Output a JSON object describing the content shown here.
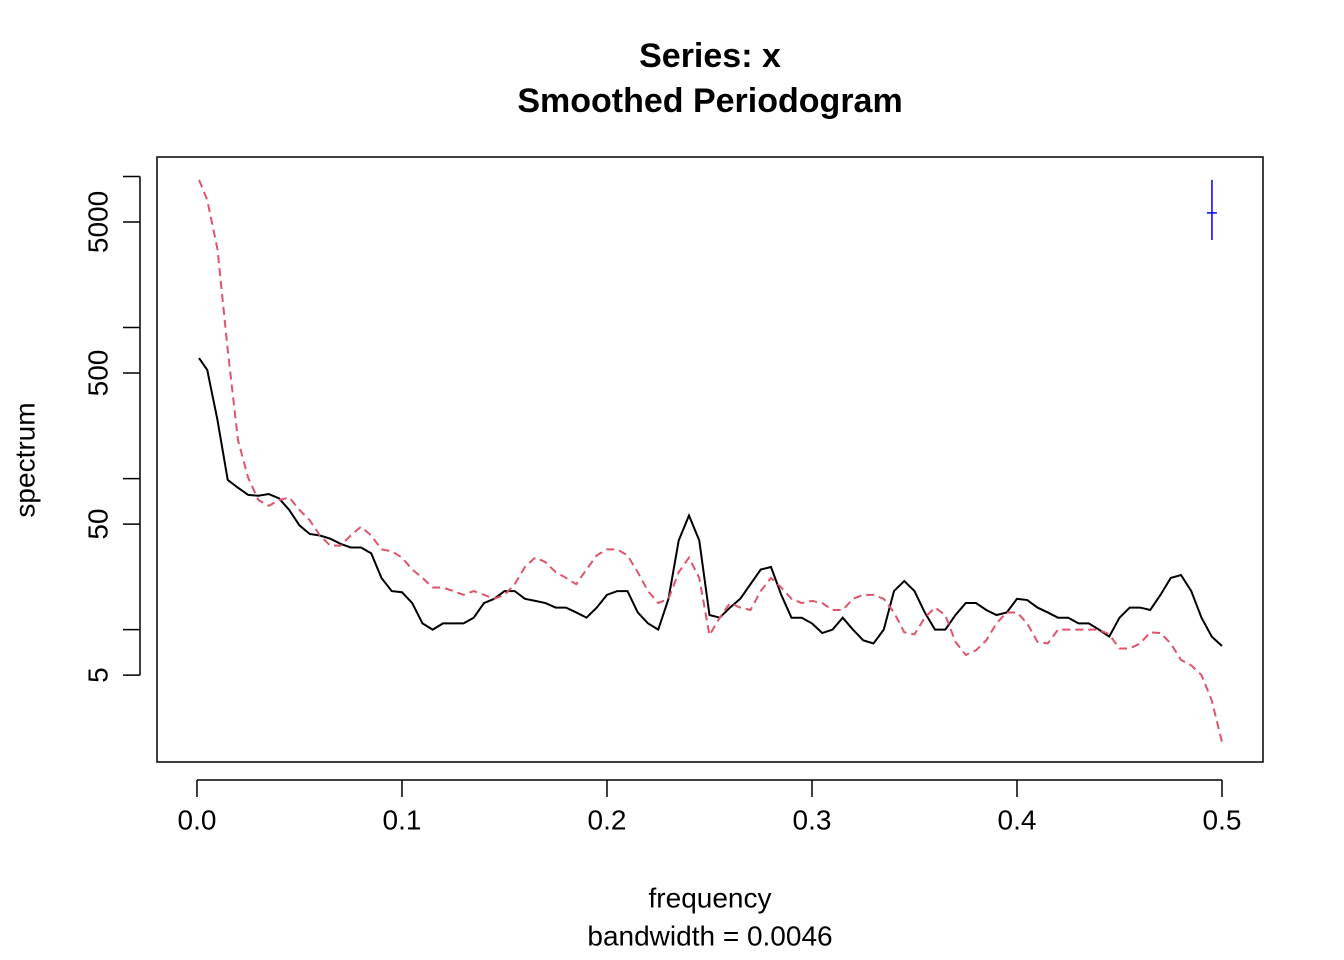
{
  "chart_data": {
    "type": "line",
    "title": "Series: x",
    "subtitle": "Smoothed Periodogram",
    "x_label": "frequency",
    "y_label": "spectrum",
    "sub_label": "bandwidth = 0.0046",
    "log_y": true,
    "xlim": [
      -0.0195,
      0.52
    ],
    "ylim": [
      1.33,
      13460
    ],
    "xticks": [
      {
        "value": 0,
        "label": "0.0"
      },
      0.1,
      0.2,
      0.3,
      0.4,
      0.5
    ],
    "yticks": [
      5,
      50,
      500,
      5000
    ],
    "yminor_ticks": [
      10,
      100,
      1000,
      10000
    ],
    "x": [
      0.001,
      0.005,
      0.01,
      0.015,
      0.02,
      0.025,
      0.03,
      0.035,
      0.04,
      0.045,
      0.05,
      0.055,
      0.06,
      0.065,
      0.07,
      0.075,
      0.08,
      0.085,
      0.09,
      0.095,
      0.1,
      0.105,
      0.11,
      0.115,
      0.12,
      0.125,
      0.13,
      0.135,
      0.14,
      0.145,
      0.15,
      0.155,
      0.16,
      0.165,
      0.17,
      0.175,
      0.18,
      0.185,
      0.19,
      0.195,
      0.2,
      0.205,
      0.21,
      0.215,
      0.22,
      0.225,
      0.23,
      0.235,
      0.24,
      0.245,
      0.25,
      0.255,
      0.26,
      0.265,
      0.27,
      0.275,
      0.28,
      0.285,
      0.29,
      0.295,
      0.3,
      0.305,
      0.31,
      0.315,
      0.32,
      0.325,
      0.33,
      0.335,
      0.34,
      0.345,
      0.35,
      0.355,
      0.36,
      0.365,
      0.37,
      0.375,
      0.38,
      0.385,
      0.39,
      0.395,
      0.4,
      0.405,
      0.41,
      0.415,
      0.42,
      0.425,
      0.43,
      0.435,
      0.44,
      0.445,
      0.45,
      0.455,
      0.46,
      0.465,
      0.47,
      0.475,
      0.48,
      0.485,
      0.49,
      0.495,
      0.5
    ],
    "series": [
      {
        "color": "#000000",
        "dash": false,
        "values": [
          628,
          524,
          244,
          98,
          87,
          78,
          77,
          79,
          74,
          62,
          49,
          43,
          42,
          40,
          37,
          35,
          35,
          32,
          22,
          18,
          17.7,
          15,
          11,
          10,
          11,
          11,
          11,
          12,
          15,
          16,
          18,
          18,
          16,
          15.5,
          15,
          14,
          14,
          13,
          12,
          14,
          17,
          18,
          18,
          13,
          11,
          10,
          16,
          39,
          57,
          39,
          12.5,
          12,
          14,
          16,
          20,
          25,
          26,
          17,
          12,
          12,
          11,
          9.5,
          10,
          12,
          10,
          8.5,
          8.1,
          10,
          18,
          21,
          18,
          13,
          10,
          10,
          12.5,
          15,
          15,
          13.5,
          12.5,
          13,
          16,
          15.7,
          14,
          13,
          12,
          12,
          11,
          11,
          10,
          9,
          12,
          14,
          14,
          13.5,
          17,
          22,
          23,
          18,
          12,
          9,
          7.8
        ]
      },
      {
        "color": "#df536b",
        "dash": true,
        "values": [
          9500,
          7000,
          3300,
          710,
          180,
          101,
          72,
          66,
          72,
          75,
          62,
          53,
          42,
          36,
          36,
          42,
          48,
          42,
          34,
          33,
          30,
          25,
          22,
          19,
          19,
          18,
          17,
          18,
          17,
          16,
          17,
          20,
          26,
          30,
          28,
          24,
          22,
          20,
          25,
          31,
          34,
          34,
          31,
          24,
          18,
          15,
          16,
          24,
          30,
          22,
          9.2,
          12,
          15,
          14,
          13.5,
          18,
          22,
          19,
          16,
          15,
          15.5,
          15,
          13.5,
          13.5,
          16,
          17,
          17,
          16,
          13,
          9.6,
          9.3,
          12,
          14,
          12.5,
          8.3,
          6.8,
          7.3,
          8.5,
          11,
          13,
          13,
          11,
          8.3,
          8.1,
          10,
          10,
          10,
          10,
          10,
          9.3,
          7.5,
          7.5,
          8.1,
          9.6,
          9.5,
          8.1,
          6.3,
          5.8,
          5.0,
          3.4,
          1.8
        ]
      }
    ],
    "ci_bar": {
      "x": 0.4951,
      "center": 5740,
      "lower": 3800,
      "upper": 9500,
      "color": "#0000ff"
    }
  }
}
